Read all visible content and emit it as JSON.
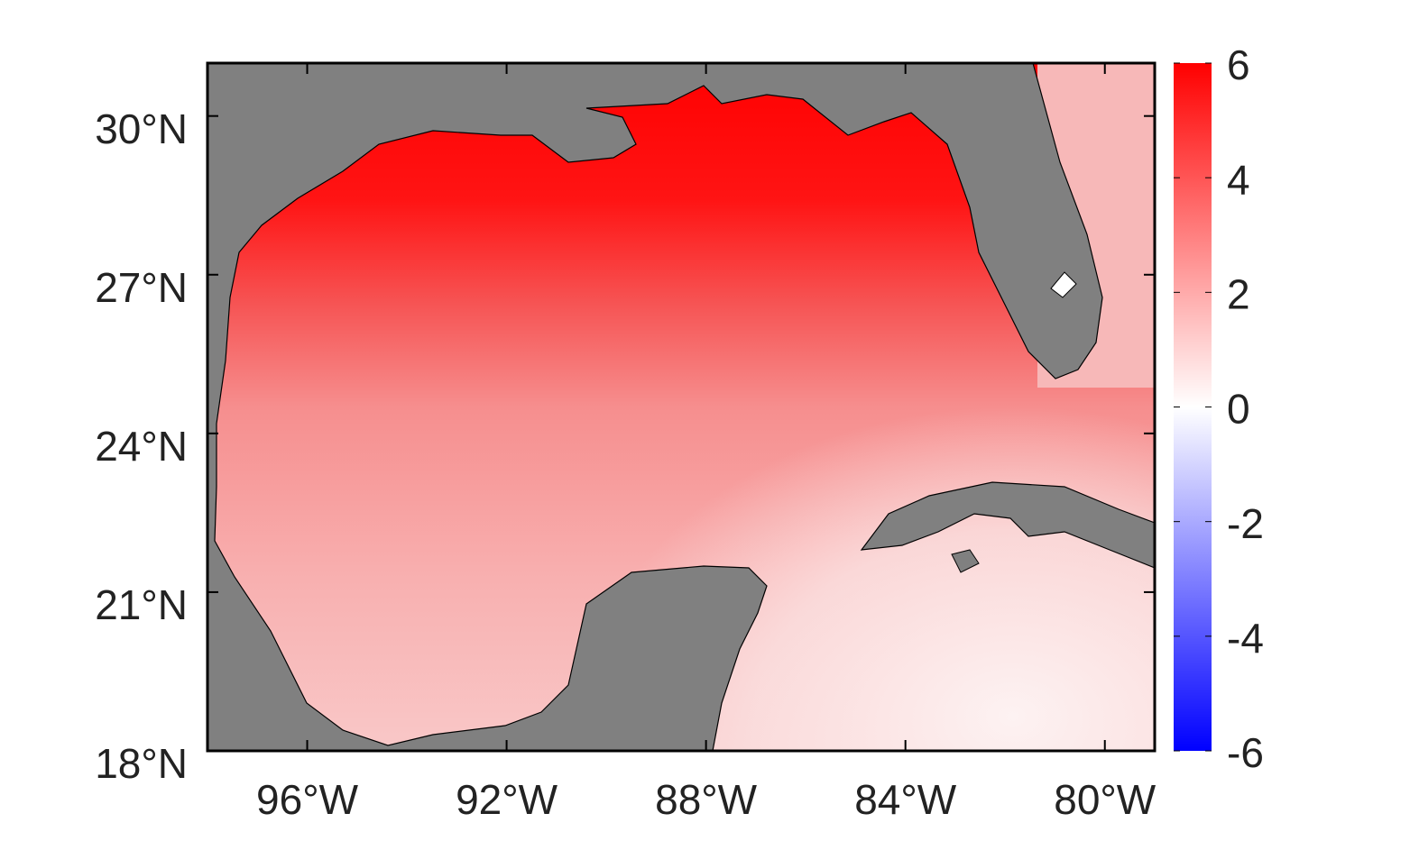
{
  "chart_data": {
    "type": "map",
    "xlim": [
      -98,
      -79
    ],
    "xticks": [
      {
        "value": -96,
        "label": "96°W"
      },
      {
        "value": -92,
        "label": "92°W"
      },
      {
        "value": -88,
        "label": "88°W"
      },
      {
        "value": -84,
        "label": "84°W"
      },
      {
        "value": -80,
        "label": "80°W"
      }
    ],
    "ylim": [
      18,
      31
    ],
    "yticks": [
      {
        "value": 18,
        "label": "18°N"
      },
      {
        "value": 21,
        "label": "21°N"
      },
      {
        "value": 24,
        "label": "24°N"
      },
      {
        "value": 27,
        "label": "27°N"
      },
      {
        "value": 30,
        "label": "30°N"
      }
    ],
    "colorbar": {
      "lim": [
        -6,
        6
      ],
      "ticks": [
        -6,
        -4,
        -2,
        0,
        2,
        4,
        6
      ],
      "colors": [
        "#0000ff",
        "#ffffff",
        "#ff0000"
      ]
    }
  }
}
